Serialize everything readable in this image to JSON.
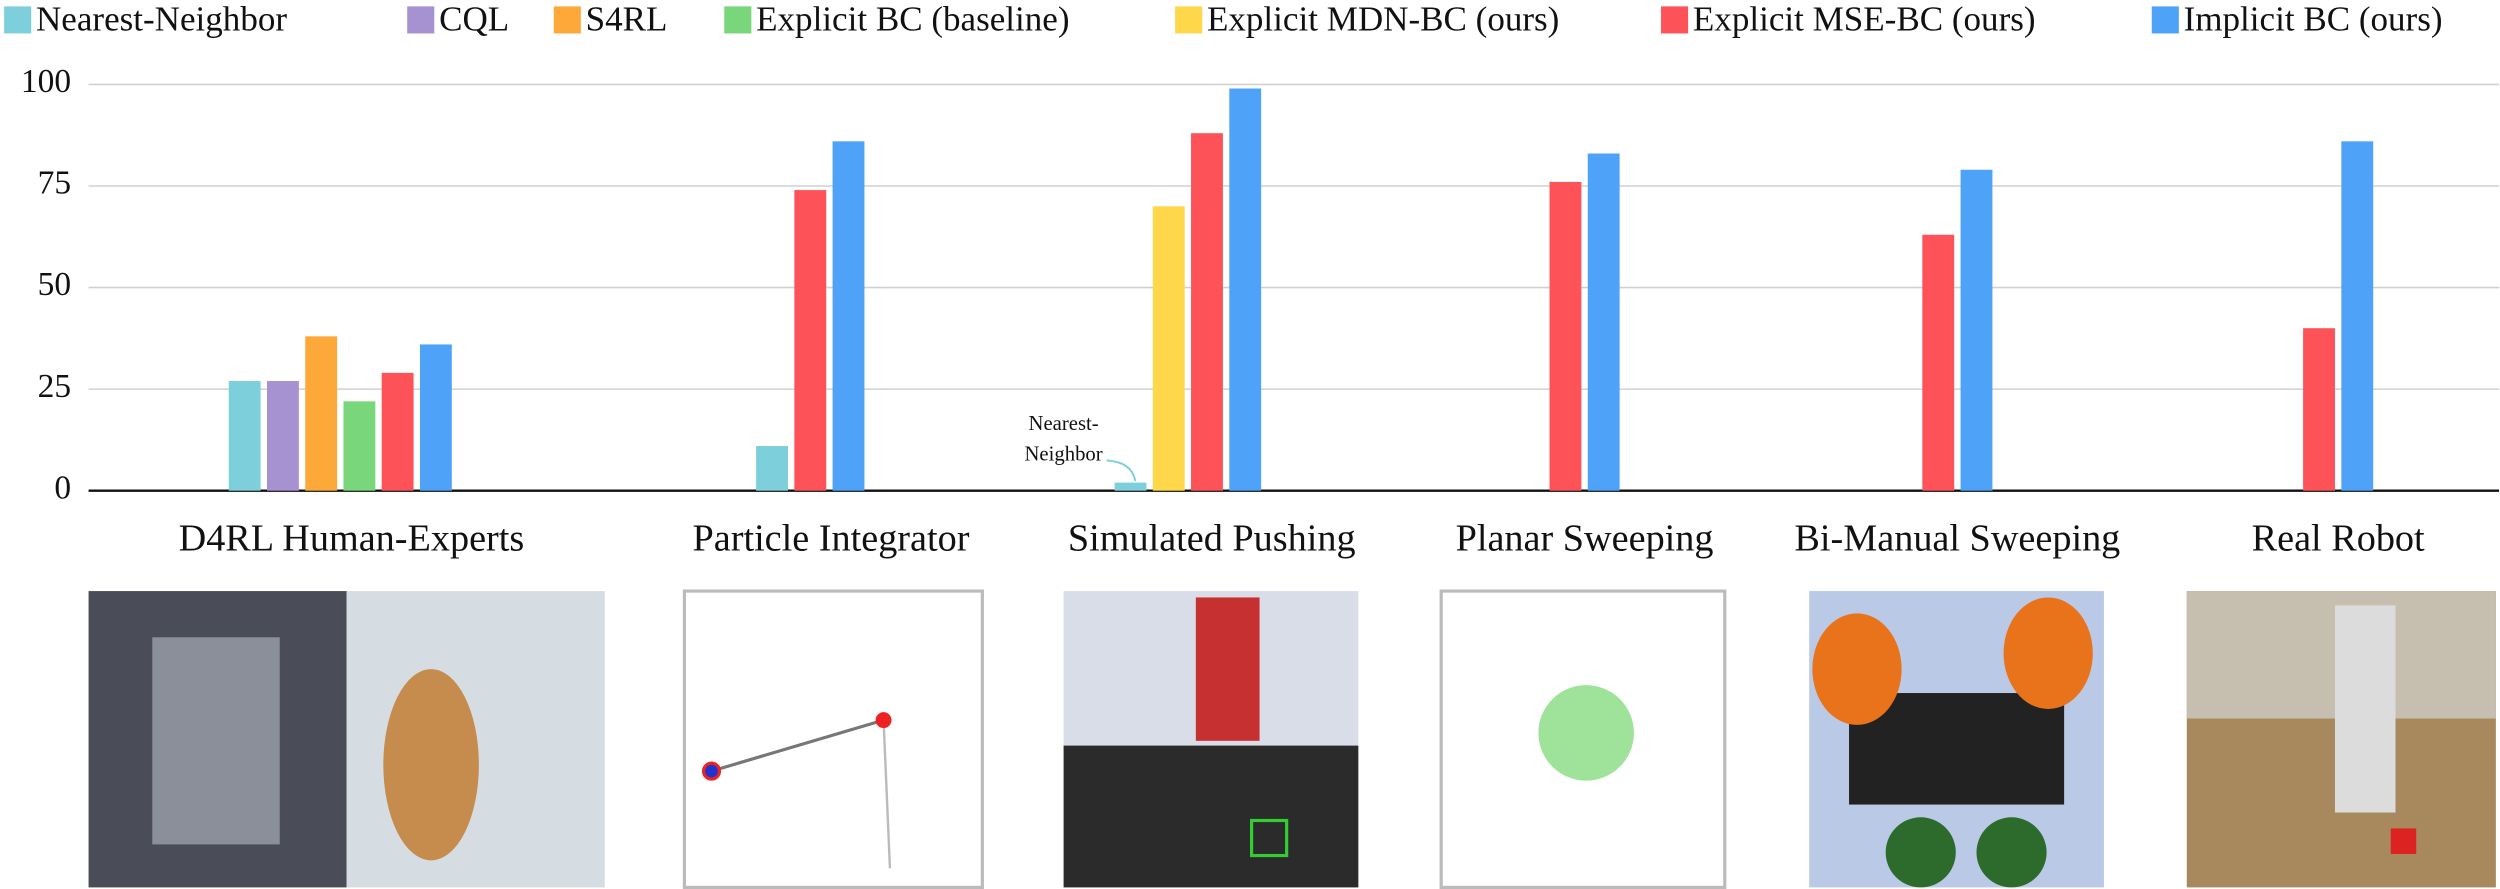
{
  "chart_data": {
    "type": "bar",
    "categories": [
      "D4RL Human-Experts",
      "Particle Integrator",
      "Simulated Pushing",
      "Planar Sweeping",
      "Bi-Manual Sweeping",
      "Real Robot"
    ],
    "series": [
      {
        "name": "Nearest-Neighbor",
        "color": "#7ecfdc",
        "values": [
          27,
          11,
          2,
          null,
          null,
          null
        ]
      },
      {
        "name": "CQL",
        "color": "#a692d0",
        "values": [
          27,
          null,
          null,
          null,
          null,
          null
        ]
      },
      {
        "name": "S4RL",
        "color": "#fda93a",
        "values": [
          38,
          null,
          null,
          null,
          null,
          null
        ]
      },
      {
        "name": "Explicit BC (baseline)",
        "color": "#7ad67a",
        "values": [
          22,
          null,
          null,
          null,
          null,
          null
        ]
      },
      {
        "name": "Explicit MDN-BC (ours)",
        "color": "#fed84a",
        "values": [
          null,
          null,
          70,
          null,
          null,
          null
        ]
      },
      {
        "name": "Explicit MSE-BC (ours)",
        "color": "#fd5258",
        "values": [
          29,
          74,
          88,
          76,
          63,
          40
        ]
      },
      {
        "name": "Implicit BC (ours)",
        "color": "#4ea3f9",
        "values": [
          36,
          86,
          99,
          83,
          79,
          86
        ]
      }
    ],
    "annotation": [
      "Nearest-",
      "Neighbor"
    ],
    "ylim": [
      0,
      100
    ],
    "yticks": [
      0,
      25,
      50,
      75,
      100
    ],
    "grid": true
  }
}
